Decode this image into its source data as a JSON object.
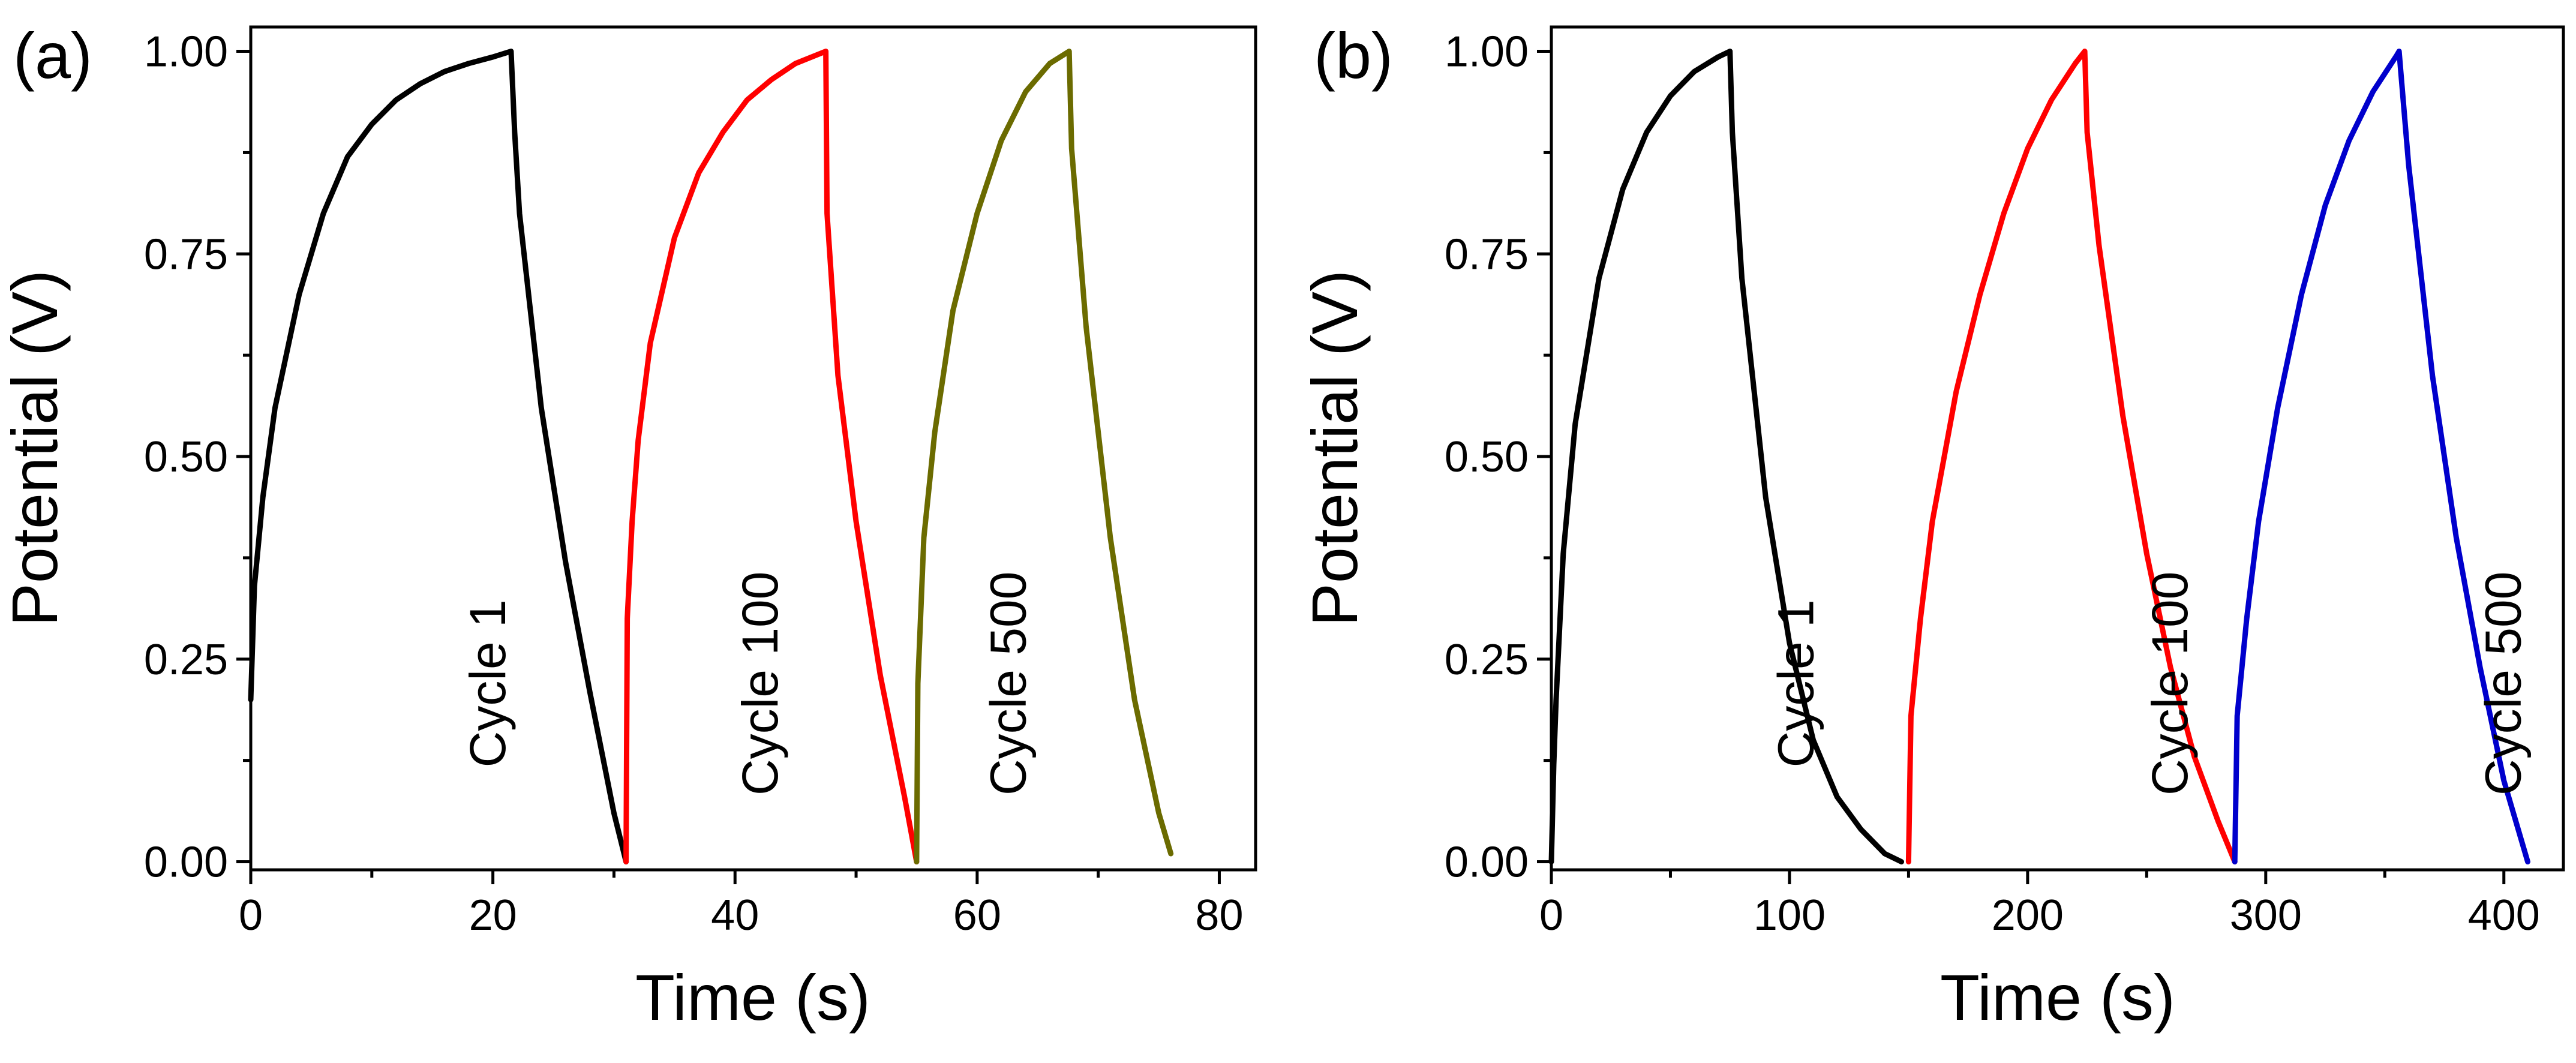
{
  "chart_data": [
    {
      "type": "line",
      "panel_label": "(a)",
      "xlabel": "Time (s)",
      "ylabel": "Potential (V)",
      "xlim": [
        0,
        83
      ],
      "ylim": [
        -0.01,
        1.03
      ],
      "xticks": [
        0,
        20,
        40,
        60,
        80
      ],
      "xtick_labels": [
        "0",
        "20",
        "40",
        "60",
        "80"
      ],
      "yticks": [
        0,
        0.25,
        0.5,
        0.75,
        1.0
      ],
      "ytick_labels": [
        "0.00",
        "0.25",
        "0.50",
        "0.75",
        "1.00"
      ],
      "series": [
        {
          "name": "Cycle 1",
          "label": "Cycle 1",
          "color": "#000000",
          "label_x": 21,
          "label_y": 0.22,
          "x": [
            0,
            0.3,
            1,
            2,
            4,
            6,
            8,
            10,
            12,
            14,
            16,
            18,
            20,
            21.5,
            21.8,
            22.2,
            24,
            26,
            28,
            30,
            31
          ],
          "y": [
            0.2,
            0.34,
            0.45,
            0.56,
            0.7,
            0.8,
            0.87,
            0.91,
            0.94,
            0.96,
            0.975,
            0.985,
            0.993,
            1.0,
            0.9,
            0.8,
            0.56,
            0.37,
            0.21,
            0.06,
            0.0
          ]
        },
        {
          "name": "Cycle 100",
          "label": "Cycle 100",
          "color": "#ff0000",
          "label_x": 43.5,
          "label_y": 0.22,
          "x": [
            31,
            31.1,
            31.5,
            32,
            33,
            35,
            37,
            39,
            41,
            43,
            45,
            47.5,
            47.6,
            48.5,
            50,
            52,
            54,
            55
          ],
          "y": [
            0.0,
            0.3,
            0.42,
            0.52,
            0.64,
            0.77,
            0.85,
            0.9,
            0.94,
            0.965,
            0.985,
            1.0,
            0.8,
            0.6,
            0.42,
            0.23,
            0.08,
            0.0
          ]
        },
        {
          "name": "Cycle 500",
          "label": "Cycle 500",
          "color": "#6b6b00",
          "label_x": 64,
          "label_y": 0.22,
          "x": [
            55,
            55.1,
            55.6,
            56.5,
            58,
            60,
            62,
            64,
            66,
            67.6,
            67.8,
            69,
            71,
            73,
            75,
            76
          ],
          "y": [
            0.0,
            0.22,
            0.4,
            0.53,
            0.68,
            0.8,
            0.89,
            0.95,
            0.985,
            1.0,
            0.88,
            0.66,
            0.4,
            0.2,
            0.06,
            0.01
          ]
        }
      ]
    },
    {
      "type": "line",
      "panel_label": "(b)",
      "xlabel": "Time (s)",
      "ylabel": "Potential (V)",
      "xlim": [
        0,
        425
      ],
      "ylim": [
        -0.01,
        1.03
      ],
      "xticks": [
        0,
        100,
        200,
        300,
        400
      ],
      "xtick_labels": [
        "0",
        "100",
        "200",
        "300",
        "400"
      ],
      "yticks": [
        0,
        0.25,
        0.5,
        0.75,
        1.0
      ],
      "ytick_labels": [
        "0.00",
        "0.25",
        "0.50",
        "0.75",
        "1.00"
      ],
      "series": [
        {
          "name": "Cycle 1",
          "label": "Cycle 1",
          "color": "#000000",
          "label_x": 110,
          "label_y": 0.22,
          "x": [
            0,
            1,
            2,
            5,
            10,
            20,
            30,
            40,
            50,
            60,
            70,
            75,
            76,
            80,
            90,
            100,
            110,
            120,
            130,
            140,
            147
          ],
          "y": [
            0.0,
            0.12,
            0.2,
            0.38,
            0.54,
            0.72,
            0.83,
            0.9,
            0.945,
            0.975,
            0.993,
            1.0,
            0.9,
            0.72,
            0.45,
            0.27,
            0.15,
            0.08,
            0.04,
            0.01,
            0.0
          ]
        },
        {
          "name": "Cycle 100",
          "label": "Cycle 100",
          "color": "#ff0000",
          "label_x": 267,
          "label_y": 0.22,
          "x": [
            150,
            151,
            155,
            160,
            170,
            180,
            190,
            200,
            210,
            220,
            224,
            225,
            230,
            240,
            250,
            260,
            270,
            280,
            287
          ],
          "y": [
            0.0,
            0.18,
            0.3,
            0.42,
            0.58,
            0.7,
            0.8,
            0.88,
            0.94,
            0.985,
            1.0,
            0.9,
            0.76,
            0.55,
            0.38,
            0.24,
            0.13,
            0.05,
            0.0
          ]
        },
        {
          "name": "Cycle 500",
          "label": "Cycle 500",
          "color": "#0000cc",
          "label_x": 407,
          "label_y": 0.22,
          "x": [
            287,
            288,
            292,
            297,
            305,
            315,
            325,
            335,
            345,
            355,
            356,
            360,
            370,
            380,
            390,
            400,
            410
          ],
          "y": [
            0.0,
            0.18,
            0.3,
            0.42,
            0.56,
            0.7,
            0.81,
            0.89,
            0.95,
            0.995,
            1.0,
            0.86,
            0.6,
            0.4,
            0.24,
            0.1,
            0.0
          ]
        }
      ]
    }
  ]
}
